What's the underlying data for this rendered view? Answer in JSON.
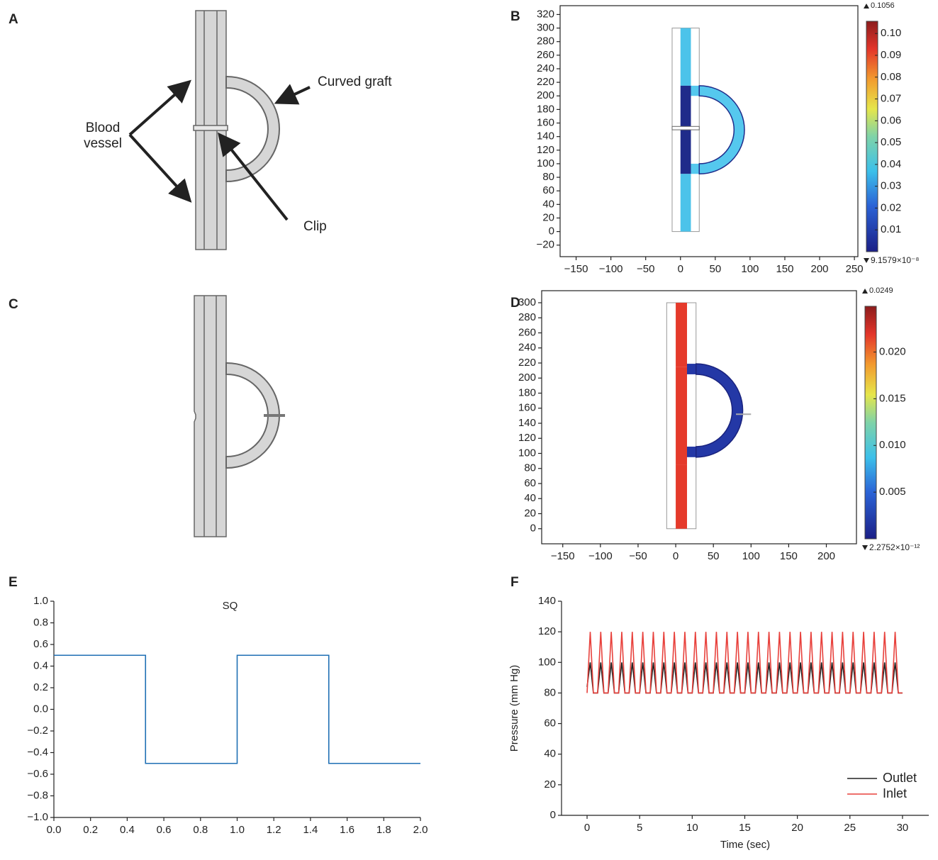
{
  "panel_labels": [
    "A",
    "B",
    "C",
    "D",
    "E",
    "F"
  ],
  "diagram_a": {
    "curved_graft": "Curved graft",
    "blood_vessel": [
      "Blood",
      "vessel"
    ],
    "clip": "Clip"
  },
  "chart_data": [
    {
      "type": "contour",
      "xlim": [
        -173,
        255
      ],
      "xticks": [
        {
          "value": -150,
          "label": "−150"
        },
        {
          "value": -100,
          "label": "−100"
        },
        {
          "value": -50,
          "label": "−50"
        },
        0,
        50,
        100,
        150,
        200,
        250
      ],
      "ylim": [
        -37,
        333
      ],
      "yticks": [
        {
          "value": -20,
          "label": "−20"
        },
        0,
        20,
        40,
        60,
        80,
        100,
        120,
        140,
        160,
        180,
        200,
        220,
        240,
        260,
        280,
        300,
        320
      ],
      "clim": [
        {
          "value": 9.1579e-08,
          "label": "9.1579×10⁻⁸"
        },
        0.1056
      ],
      "cticks": [
        0.01,
        0.02,
        0.03,
        0.04,
        0.05,
        0.06,
        0.07,
        0.08,
        0.09,
        {
          "value": 0.1,
          "label": "0.10"
        }
      ]
    },
    {
      "type": "contour",
      "xlim": [
        -178,
        240
      ],
      "xticks": [
        {
          "value": -150,
          "label": "−150"
        },
        {
          "value": -100,
          "label": "−100"
        },
        {
          "value": -50,
          "label": "−50"
        },
        0,
        50,
        100,
        150,
        200
      ],
      "ylim": [
        -20,
        316
      ],
      "yticks": [
        0,
        20,
        40,
        60,
        80,
        100,
        120,
        140,
        160,
        180,
        200,
        220,
        240,
        260,
        280,
        300
      ],
      "clim": [
        {
          "value": 2.2752e-12,
          "label": "2.2752×10⁻¹²"
        },
        0.0249
      ],
      "cticks": [
        0.005,
        {
          "value": 0.01,
          "label": "0.010"
        },
        0.015,
        {
          "value": 0.02,
          "label": "0.020"
        }
      ]
    },
    {
      "type": "line",
      "title": "SQ",
      "x": [
        0,
        0.5,
        0.5,
        1,
        1,
        1.5,
        1.5,
        2
      ],
      "series": [
        {
          "color": "#1f6fb4",
          "values": [
            0.5,
            0.5,
            -0.5,
            -0.5,
            0.5,
            0.5,
            -0.5,
            -0.5
          ]
        }
      ],
      "xlim": [
        0,
        2
      ],
      "xticks": [
        {
          "value": 0,
          "label": "0.0"
        },
        0.2,
        0.4,
        0.6,
        0.8,
        {
          "value": 1,
          "label": "1.0"
        },
        1.2,
        1.4,
        1.6,
        1.8,
        {
          "value": 2,
          "label": "2.0"
        }
      ],
      "ylim": [
        -1,
        1
      ],
      "yticks": [
        {
          "value": -1,
          "label": "−1.0"
        },
        {
          "value": -0.8,
          "label": "−0.8"
        },
        {
          "value": -0.6,
          "label": "−0.6"
        },
        {
          "value": -0.4,
          "label": "−0.4"
        },
        {
          "value": -0.2,
          "label": "−0.2"
        },
        {
          "value": 0,
          "label": "0.0"
        },
        0.2,
        0.4,
        0.6,
        0.8,
        {
          "value": 1,
          "label": "1.0"
        }
      ]
    },
    {
      "type": "line",
      "xlabel": "Time (sec)",
      "ylabel": "Pressure (mm Hg)",
      "legend": "lower right",
      "x": [
        0,
        0.3,
        0.6,
        1,
        1.3,
        1.6,
        2,
        2.3,
        2.6,
        3,
        3.3,
        3.6,
        4,
        4.3,
        4.6,
        5,
        5.3,
        5.6,
        6,
        6.3,
        6.6,
        7,
        7.3,
        7.6,
        8,
        8.3,
        8.6,
        9,
        9.3,
        9.6,
        10,
        10.3,
        10.6,
        11,
        11.3,
        11.6,
        12,
        12.3,
        12.6,
        13,
        13.3,
        13.6,
        14,
        14.3,
        14.6,
        15,
        15.3,
        15.6,
        16,
        16.3,
        16.6,
        17,
        17.3,
        17.6,
        18,
        18.3,
        18.6,
        19,
        19.3,
        19.6,
        20,
        20.3,
        20.6,
        21,
        21.3,
        21.6,
        22,
        22.3,
        22.6,
        23,
        23.3,
        23.6,
        24,
        24.3,
        24.6,
        25,
        25.3,
        25.6,
        26,
        26.3,
        26.6,
        27,
        27.3,
        27.6,
        28,
        28.3,
        28.6,
        29,
        29.3,
        29.6,
        30
      ],
      "series": [
        {
          "name": "Outlet",
          "color": "#222222",
          "values": [
            84,
            100,
            80,
            80,
            100,
            80,
            80,
            100,
            80,
            80,
            100,
            80,
            80,
            100,
            80,
            80,
            100,
            80,
            80,
            100,
            80,
            80,
            100,
            80,
            80,
            100,
            80,
            80,
            100,
            80,
            80,
            100,
            80,
            80,
            100,
            80,
            80,
            100,
            80,
            80,
            100,
            80,
            80,
            100,
            80,
            80,
            100,
            80,
            80,
            100,
            80,
            80,
            100,
            80,
            80,
            100,
            80,
            80,
            100,
            80,
            80,
            100,
            80,
            80,
            100,
            80,
            80,
            100,
            80,
            80,
            100,
            80,
            80,
            100,
            80,
            80,
            100,
            80,
            80,
            100,
            80,
            80,
            100,
            80,
            80,
            100,
            80,
            80,
            100,
            80,
            80
          ]
        },
        {
          "name": "Inlet",
          "color": "#e8413c",
          "values": [
            80,
            120,
            80,
            80,
            120,
            80,
            80,
            120,
            80,
            80,
            120,
            80,
            80,
            120,
            80,
            80,
            120,
            80,
            80,
            120,
            80,
            80,
            120,
            80,
            80,
            120,
            80,
            80,
            120,
            80,
            80,
            120,
            80,
            80,
            120,
            80,
            80,
            120,
            80,
            80,
            120,
            80,
            80,
            120,
            80,
            80,
            120,
            80,
            80,
            120,
            80,
            80,
            120,
            80,
            80,
            120,
            80,
            80,
            120,
            80,
            80,
            120,
            80,
            80,
            120,
            80,
            80,
            120,
            80,
            80,
            120,
            80,
            80,
            120,
            80,
            80,
            120,
            80,
            80,
            120,
            80,
            80,
            120,
            80,
            80,
            120,
            80,
            80,
            120,
            80,
            80
          ]
        }
      ],
      "xlim": [
        -2.43,
        32.5
      ],
      "xticks": [
        0,
        5,
        10,
        15,
        20,
        25,
        30
      ],
      "ylim": [
        0,
        140
      ],
      "yticks": [
        0,
        20,
        40,
        60,
        80,
        100,
        120,
        140
      ]
    }
  ]
}
